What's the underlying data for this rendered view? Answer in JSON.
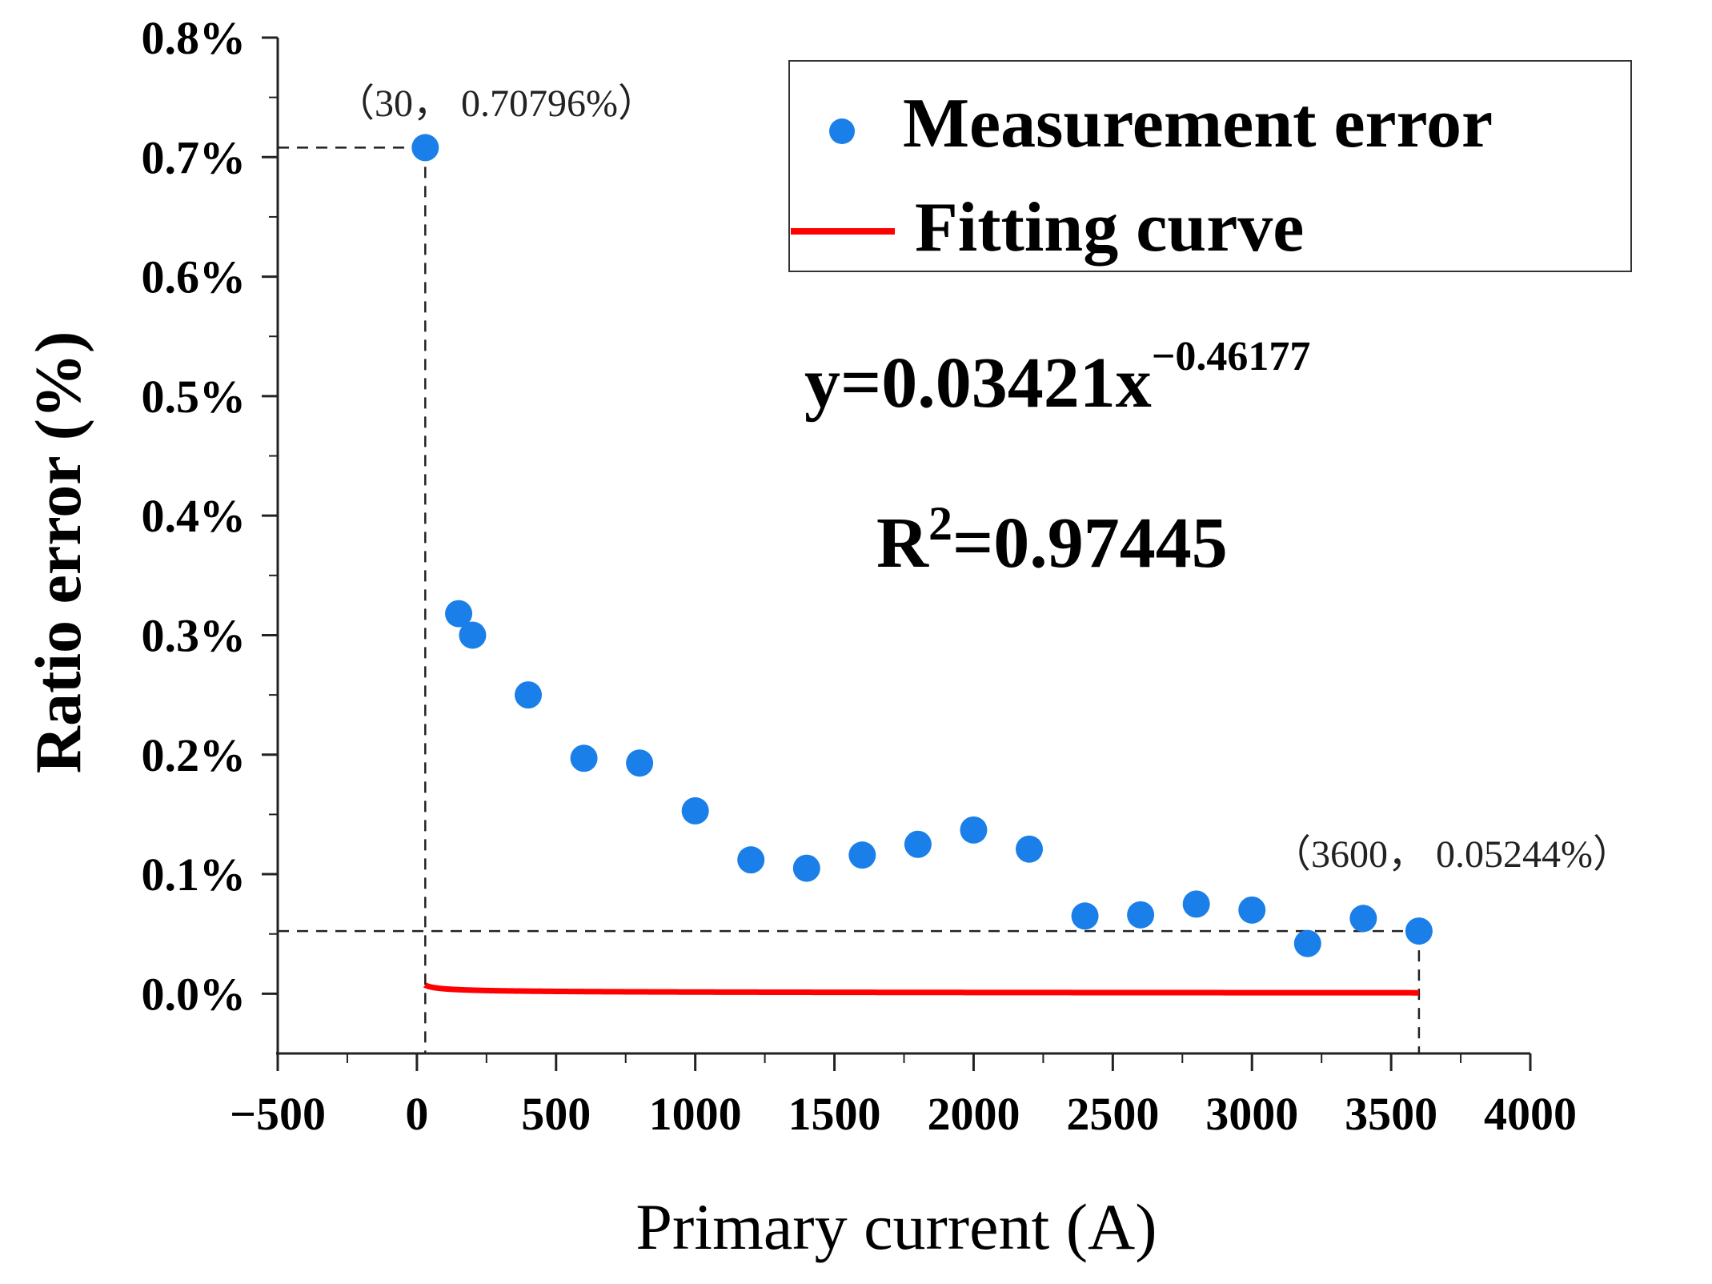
{
  "chart_data": {
    "type": "scatter",
    "title": "",
    "xlabel": "Primary current (A)",
    "ylabel": "Ratio error (%)",
    "xlim": [
      -500,
      4000
    ],
    "ylim": [
      -0.05,
      0.8
    ],
    "x_ticks": [
      -500,
      0,
      500,
      1000,
      1500,
      2000,
      2500,
      3000,
      3500,
      4000
    ],
    "x_tick_labels": [
      "−500",
      "0",
      "500",
      "1000",
      "1500",
      "2000",
      "2500",
      "3000",
      "3500",
      "4000"
    ],
    "y_ticks": [
      0.0,
      0.1,
      0.2,
      0.3,
      0.4,
      0.5,
      0.6,
      0.7,
      0.8
    ],
    "y_tick_labels": [
      "0.0%",
      "0.1%",
      "0.2%",
      "0.3%",
      "0.4%",
      "0.5%",
      "0.6%",
      "0.7%",
      "0.8%"
    ],
    "series": [
      {
        "name": "Measurement error",
        "kind": "scatter",
        "color": "#1a7fe8",
        "x": [
          30,
          150,
          200,
          400,
          600,
          800,
          1000,
          1200,
          1400,
          1600,
          1800,
          2000,
          2200,
          2400,
          2600,
          2800,
          3000,
          3200,
          3400,
          3600
        ],
        "y": [
          0.70796,
          0.318,
          0.3,
          0.25,
          0.197,
          0.193,
          0.153,
          0.112,
          0.105,
          0.116,
          0.125,
          0.137,
          0.121,
          0.065,
          0.066,
          0.075,
          0.07,
          0.042,
          0.063,
          0.05244
        ]
      },
      {
        "name": "Fitting curve",
        "kind": "line",
        "color": "#ff0000",
        "equation": {
          "coefficient": 0.03421,
          "exponent": -0.46177,
          "x_start": 30,
          "x_end": 3600
        }
      }
    ],
    "legend": {
      "position": "top-right",
      "entries": [
        "Measurement error",
        "Fitting curve"
      ]
    },
    "annotations": {
      "equation_main": "y=0.03421x",
      "equation_exp": "−0.46177",
      "r2_base": "R",
      "r2_exp": "2",
      "r2_value": "=0.97445",
      "point_start_label": "（30， 0.70796%）",
      "point_end_label": "（3600， 0.05244%）"
    }
  }
}
